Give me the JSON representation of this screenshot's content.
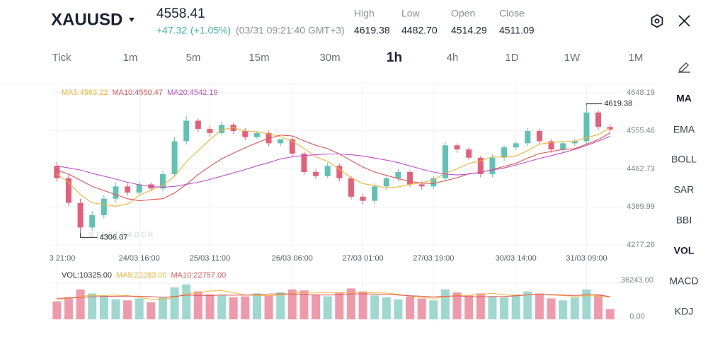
{
  "header": {
    "symbol": "XAUUSD",
    "price": "4558.41",
    "change": "+47.32",
    "change_pct": "(+1.05%)",
    "time": "(03/31 09:21:40 GMT+3)",
    "stats": [
      {
        "label": "High",
        "value": "4619.38"
      },
      {
        "label": "Low",
        "value": "4482.70"
      },
      {
        "label": "Open",
        "value": "4514.29"
      },
      {
        "label": "Close",
        "value": "4511.09"
      }
    ]
  },
  "timeframes": {
    "items": [
      "Tick",
      "1m",
      "5m",
      "15m",
      "30m",
      "1h",
      "4h",
      "1D",
      "1W",
      "1M"
    ],
    "selected": 5
  },
  "indicators": {
    "main": [
      "MA",
      "EMA",
      "BOLL",
      "SAR",
      "BBI"
    ],
    "sub": [
      "VOL",
      "MACD",
      "KDJ"
    ],
    "selected_main": 0,
    "selected_sub": 0
  },
  "chart_data": [
    {
      "type": "candlestick",
      "watermark": "STARTRADER",
      "categories": [
        "3 21:00",
        null,
        null,
        null,
        null,
        null,
        null,
        "24/03 16:00",
        null,
        null,
        null,
        null,
        null,
        "25/03 11:00",
        null,
        null,
        null,
        null,
        null,
        null,
        "26/03 06:00",
        null,
        null,
        null,
        null,
        null,
        "27/03 01:00",
        null,
        null,
        null,
        null,
        null,
        "27/03 19:00",
        null,
        null,
        null,
        null,
        null,
        null,
        "30/03 14:00",
        null,
        null,
        null,
        null,
        null,
        "31/03 09:00",
        null,
        null
      ],
      "open": [
        4470,
        4440,
        4380,
        4320,
        4350,
        4390,
        4420,
        4405,
        4425,
        4415,
        4450,
        4530,
        4580,
        4560,
        4550,
        4570,
        4555,
        4540,
        4550,
        4525,
        4535,
        4500,
        4455,
        4445,
        4470,
        4440,
        4395,
        4385,
        4420,
        4440,
        4455,
        4425,
        4420,
        4440,
        4520,
        4510,
        4490,
        4450,
        4490,
        4515,
        4525,
        4555,
        4530,
        4510,
        4525,
        4530,
        4600,
        4565
      ],
      "high": [
        4480,
        4450,
        4390,
        4360,
        4400,
        4430,
        4428,
        4432,
        4430,
        4458,
        4540,
        4592,
        4585,
        4568,
        4578,
        4575,
        4562,
        4555,
        4556,
        4535,
        4542,
        4505,
        4462,
        4478,
        4476,
        4445,
        4402,
        4428,
        4448,
        4462,
        4460,
        4432,
        4445,
        4528,
        4525,
        4515,
        4495,
        4498,
        4520,
        4530,
        4562,
        4560,
        4535,
        4530,
        4536,
        4619.38,
        4605,
        4572
      ],
      "low": [
        4432,
        4372,
        4306.07,
        4312,
        4342,
        4382,
        4398,
        4398,
        4408,
        4408,
        4444,
        4522,
        4552,
        4540,
        4544,
        4548,
        4532,
        4535,
        4518,
        4518,
        4492,
        4448,
        4438,
        4440,
        4432,
        4388,
        4376,
        4378,
        4412,
        4432,
        4418,
        4412,
        4414,
        4432,
        4502,
        4485,
        4442,
        4442,
        4482,
        4508,
        4518,
        4522,
        4502,
        4502,
        4518,
        4522,
        4558,
        4552
      ],
      "close": [
        4440,
        4380,
        4320,
        4350,
        4390,
        4420,
        4405,
        4425,
        4415,
        4450,
        4530,
        4580,
        4560,
        4550,
        4570,
        4555,
        4540,
        4550,
        4525,
        4535,
        4500,
        4455,
        4445,
        4470,
        4440,
        4395,
        4385,
        4420,
        4440,
        4455,
        4425,
        4420,
        4440,
        4520,
        4510,
        4490,
        4450,
        4490,
        4515,
        4525,
        4555,
        4530,
        4510,
        4525,
        4530,
        4600,
        4565,
        4558.41
      ],
      "up_color": "#5fc2b4",
      "down_color": "#e4607a",
      "ylim": [
        4262,
        4667
      ],
      "yticks": [
        4648.19,
        4555.46,
        4462.73,
        4369.99,
        4277.26
      ],
      "grid": true,
      "series": [
        {
          "name": "MA5:4563.22",
          "color": "#efb43a",
          "values": [
            4450,
            4430,
            4400,
            4380,
            4376,
            4372,
            4377,
            4398,
            4411,
            4423,
            4445,
            4480,
            4507,
            4534,
            4558,
            4563,
            4555,
            4553,
            4548,
            4541,
            4530,
            4513,
            4492,
            4481,
            4462,
            4441,
            4427,
            4422,
            4416,
            4419,
            4425,
            4429,
            4436,
            4452,
            4463,
            4476,
            4482,
            4492,
            4491,
            4494,
            4507,
            4523,
            4527,
            4529,
            4530,
            4539,
            4546,
            4563.22
          ]
        },
        {
          "name": "MA10:4550.47",
          "color": "#e05656",
          "values": [
            4460,
            4450,
            4435,
            4420,
            4410,
            4400,
            4390,
            4385,
            4388,
            4390,
            4404,
            4425,
            4449,
            4469,
            4487,
            4501,
            4514,
            4526,
            4537,
            4545,
            4543,
            4531,
            4520,
            4512,
            4499,
            4483,
            4467,
            4455,
            4447,
            4439,
            4432,
            4428,
            4427,
            4434,
            4441,
            4451,
            4454,
            4461,
            4469,
            4476,
            4489,
            4500,
            4505,
            4510,
            4512,
            4523,
            4534,
            4550.47
          ]
        },
        {
          "name": "MA20:4542.19",
          "color": "#c04fc8",
          "values": [
            4470,
            4465,
            4460,
            4452,
            4445,
            4438,
            4430,
            4424,
            4420,
            4418,
            4420,
            4425,
            4430,
            4437,
            4445,
            4453,
            4461,
            4470,
            4478,
            4487,
            4492,
            4495,
            4497,
            4499,
            4499,
            4497,
            4494,
            4489,
            4484,
            4478,
            4470,
            4462,
            4455,
            4450,
            4448,
            4450,
            4455,
            4460,
            4465,
            4472,
            4480,
            4488,
            4495,
            4502,
            4510,
            4520,
            4530,
            4542.19
          ]
        }
      ]
    },
    {
      "type": "bar",
      "title": "VOL:10325.00",
      "up_color": "#9fd8cf",
      "down_color": "#ee9aab",
      "values": [
        18000,
        22000,
        30000,
        26000,
        24000,
        20000,
        19000,
        21000,
        17000,
        22000,
        32000,
        35000,
        28000,
        25000,
        24000,
        22000,
        23000,
        26000,
        24000,
        27000,
        30000,
        29000,
        25000,
        23000,
        27000,
        31000,
        28000,
        24000,
        22000,
        20000,
        23000,
        21000,
        19000,
        30000,
        27000,
        24000,
        26000,
        23000,
        22000,
        25000,
        28000,
        26000,
        21000,
        19000,
        22000,
        30000,
        25000,
        10325
      ],
      "ylim": [
        0,
        36243
      ],
      "yticks": [
        {
          "value": 0,
          "label": "0.00"
        },
        {
          "value": 36243,
          "label": "36243.00"
        }
      ],
      "series": [
        {
          "name": "MA5:22283.00",
          "color": "#efb43a",
          "values": [
            20000,
            21000,
            23000,
            24000,
            24000,
            24400,
            23800,
            22000,
            20200,
            19800,
            22200,
            25400,
            26800,
            28400,
            28800,
            26800,
            24400,
            24000,
            23800,
            24400,
            26000,
            27200,
            27000,
            26800,
            26800,
            27000,
            26800,
            26600,
            26400,
            25000,
            23400,
            22000,
            21000,
            22600,
            24000,
            24200,
            25200,
            26000,
            24600,
            24000,
            24800,
            24800,
            24400,
            23800,
            23200,
            23600,
            23400,
            22283
          ]
        },
        {
          "name": "MA10:22757.00",
          "color": "#e05656",
          "values": [
            21000,
            21500,
            22000,
            22500,
            23000,
            23200,
            23300,
            23200,
            22800,
            22000,
            22900,
            24200,
            24000,
            23900,
            24300,
            24200,
            24200,
            24700,
            25400,
            25600,
            25400,
            24800,
            24500,
            24300,
            24600,
            25500,
            25500,
            25300,
            25100,
            24400,
            23700,
            23200,
            22600,
            23100,
            23500,
            22800,
            22600,
            22900,
            23000,
            23500,
            24500,
            24600,
            24800,
            24300,
            24000,
            24500,
            24500,
            22757
          ]
        }
      ]
    }
  ]
}
